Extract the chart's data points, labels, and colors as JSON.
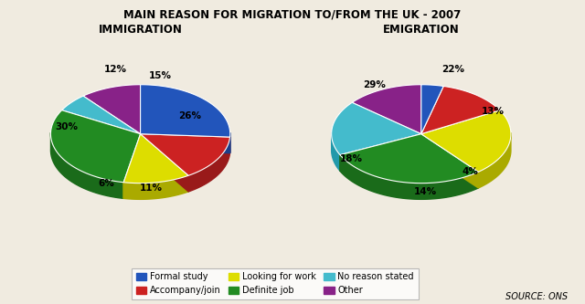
{
  "title": "MAIN REASON FOR MIGRATION TO/FROM THE UK - 2007",
  "left_title": "IMMIGRATION",
  "right_title": "EMIGRATION",
  "source": "SOURCE: ONS",
  "categories": [
    "Formal study",
    "Accompany/join",
    "Looking for work",
    "Definite job",
    "No reason stated",
    "Other"
  ],
  "colors": [
    "#2255bb",
    "#cc2222",
    "#dddd00",
    "#228B22",
    "#44bbcc",
    "#882288"
  ],
  "dark_colors": [
    "#1a3d88",
    "#991a1a",
    "#aaaa00",
    "#1a6b1a",
    "#2299aa",
    "#661a66"
  ],
  "immigration_values": [
    26,
    15,
    12,
    30,
    6,
    11
  ],
  "emigration_values": [
    4,
    13,
    22,
    29,
    18,
    14
  ],
  "immigration_labels": [
    "26%",
    "15%",
    "12%",
    "30%",
    "6%",
    "11%"
  ],
  "emigration_labels": [
    "4%",
    "13%",
    "22%",
    "29%",
    "18%",
    "14%"
  ],
  "background_color": "#f0ebe0"
}
